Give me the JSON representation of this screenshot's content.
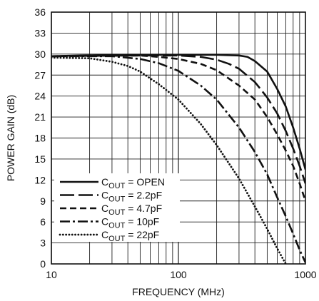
{
  "chart_data": {
    "type": "line",
    "title": "",
    "xlabel": "FREQUENCY (MHz)",
    "ylabel": "POWER GAIN (dB)",
    "x_scale": "log",
    "xlim": [
      10,
      1000
    ],
    "ylim": [
      0,
      36
    ],
    "grid": true,
    "legend_position": "bottom-left",
    "x_ticks": [
      {
        "value": 10,
        "label": "10"
      },
      {
        "value": 100,
        "label": "100"
      },
      {
        "value": 1000,
        "label": "1000"
      }
    ],
    "y_ticks": [
      {
        "value": 0,
        "label": "0"
      },
      {
        "value": 3,
        "label": "3"
      },
      {
        "value": 6,
        "label": "6"
      },
      {
        "value": 9,
        "label": "9"
      },
      {
        "value": 12,
        "label": "12"
      },
      {
        "value": 15,
        "label": "15"
      },
      {
        "value": 18,
        "label": "18"
      },
      {
        "value": 21,
        "label": "21"
      },
      {
        "value": 24,
        "label": "24"
      },
      {
        "value": 27,
        "label": "27"
      },
      {
        "value": 30,
        "label": "30"
      },
      {
        "value": 33,
        "label": "33"
      },
      {
        "value": 36,
        "label": "36"
      }
    ],
    "series": [
      {
        "name": "OPEN",
        "legend_prefix": "C",
        "legend_subscript": "OUT",
        "legend_suffix": " = OPEN",
        "dash": "solid",
        "color": "#111111",
        "points": [
          [
            10,
            29.7
          ],
          [
            30,
            29.9
          ],
          [
            100,
            29.9
          ],
          [
            200,
            29.9
          ],
          [
            300,
            29.8
          ],
          [
            350,
            29.6
          ],
          [
            400,
            29.0
          ],
          [
            500,
            27.5
          ],
          [
            600,
            25.0
          ],
          [
            700,
            22.5
          ],
          [
            800,
            19.5
          ],
          [
            900,
            16.5
          ],
          [
            1000,
            13.5
          ]
        ]
      },
      {
        "name": "2.2pF",
        "legend_prefix": "C",
        "legend_subscript": "OUT",
        "legend_suffix": " = 2.2pF",
        "dash": "longdash",
        "color": "#111111",
        "points": [
          [
            10,
            29.7
          ],
          [
            50,
            29.8
          ],
          [
            100,
            29.8
          ],
          [
            150,
            29.6
          ],
          [
            200,
            29.2
          ],
          [
            250,
            28.6
          ],
          [
            300,
            27.9
          ],
          [
            400,
            26.0
          ],
          [
            500,
            23.8
          ],
          [
            600,
            21.5
          ],
          [
            700,
            19.0
          ],
          [
            800,
            16.5
          ],
          [
            900,
            14.0
          ],
          [
            1000,
            11.5
          ]
        ]
      },
      {
        "name": "4.7pF",
        "legend_prefix": "C",
        "legend_subscript": "OUT",
        "legend_suffix": " = 4.7pF",
        "dash": "shortdash",
        "color": "#111111",
        "points": [
          [
            10,
            29.7
          ],
          [
            50,
            29.8
          ],
          [
            70,
            29.6
          ],
          [
            100,
            29.3
          ],
          [
            150,
            28.6
          ],
          [
            200,
            27.7
          ],
          [
            300,
            25.5
          ],
          [
            400,
            23.5
          ],
          [
            500,
            21.0
          ],
          [
            600,
            18.5
          ],
          [
            700,
            16.2
          ],
          [
            800,
            14.0
          ],
          [
            900,
            11.5
          ],
          [
            1000,
            9.0
          ]
        ]
      },
      {
        "name": "10pF",
        "legend_prefix": "C",
        "legend_subscript": "OUT",
        "legend_suffix": " = 10pF",
        "dash": "dashdot",
        "color": "#111111",
        "points": [
          [
            10,
            29.7
          ],
          [
            30,
            29.7
          ],
          [
            50,
            29.3
          ],
          [
            70,
            28.7
          ],
          [
            100,
            27.6
          ],
          [
            150,
            25.5
          ],
          [
            200,
            23.5
          ],
          [
            300,
            19.5
          ],
          [
            400,
            16.0
          ],
          [
            500,
            12.8
          ],
          [
            600,
            9.5
          ],
          [
            700,
            6.8
          ],
          [
            800,
            4.3
          ],
          [
            900,
            2.0
          ],
          [
            1000,
            0.2
          ]
        ]
      },
      {
        "name": "22pF",
        "legend_prefix": "C",
        "legend_subscript": "OUT",
        "legend_suffix": " = 22pF",
        "dash": "dotted",
        "color": "#111111",
        "points": [
          [
            10,
            29.5
          ],
          [
            20,
            29.4
          ],
          [
            30,
            28.9
          ],
          [
            40,
            28.3
          ],
          [
            50,
            27.5
          ],
          [
            70,
            25.7
          ],
          [
            100,
            23.5
          ],
          [
            150,
            20.0
          ],
          [
            200,
            17.0
          ],
          [
            300,
            12.2
          ],
          [
            400,
            8.2
          ],
          [
            500,
            5.0
          ],
          [
            600,
            2.2
          ],
          [
            700,
            0.0
          ]
        ]
      }
    ]
  }
}
